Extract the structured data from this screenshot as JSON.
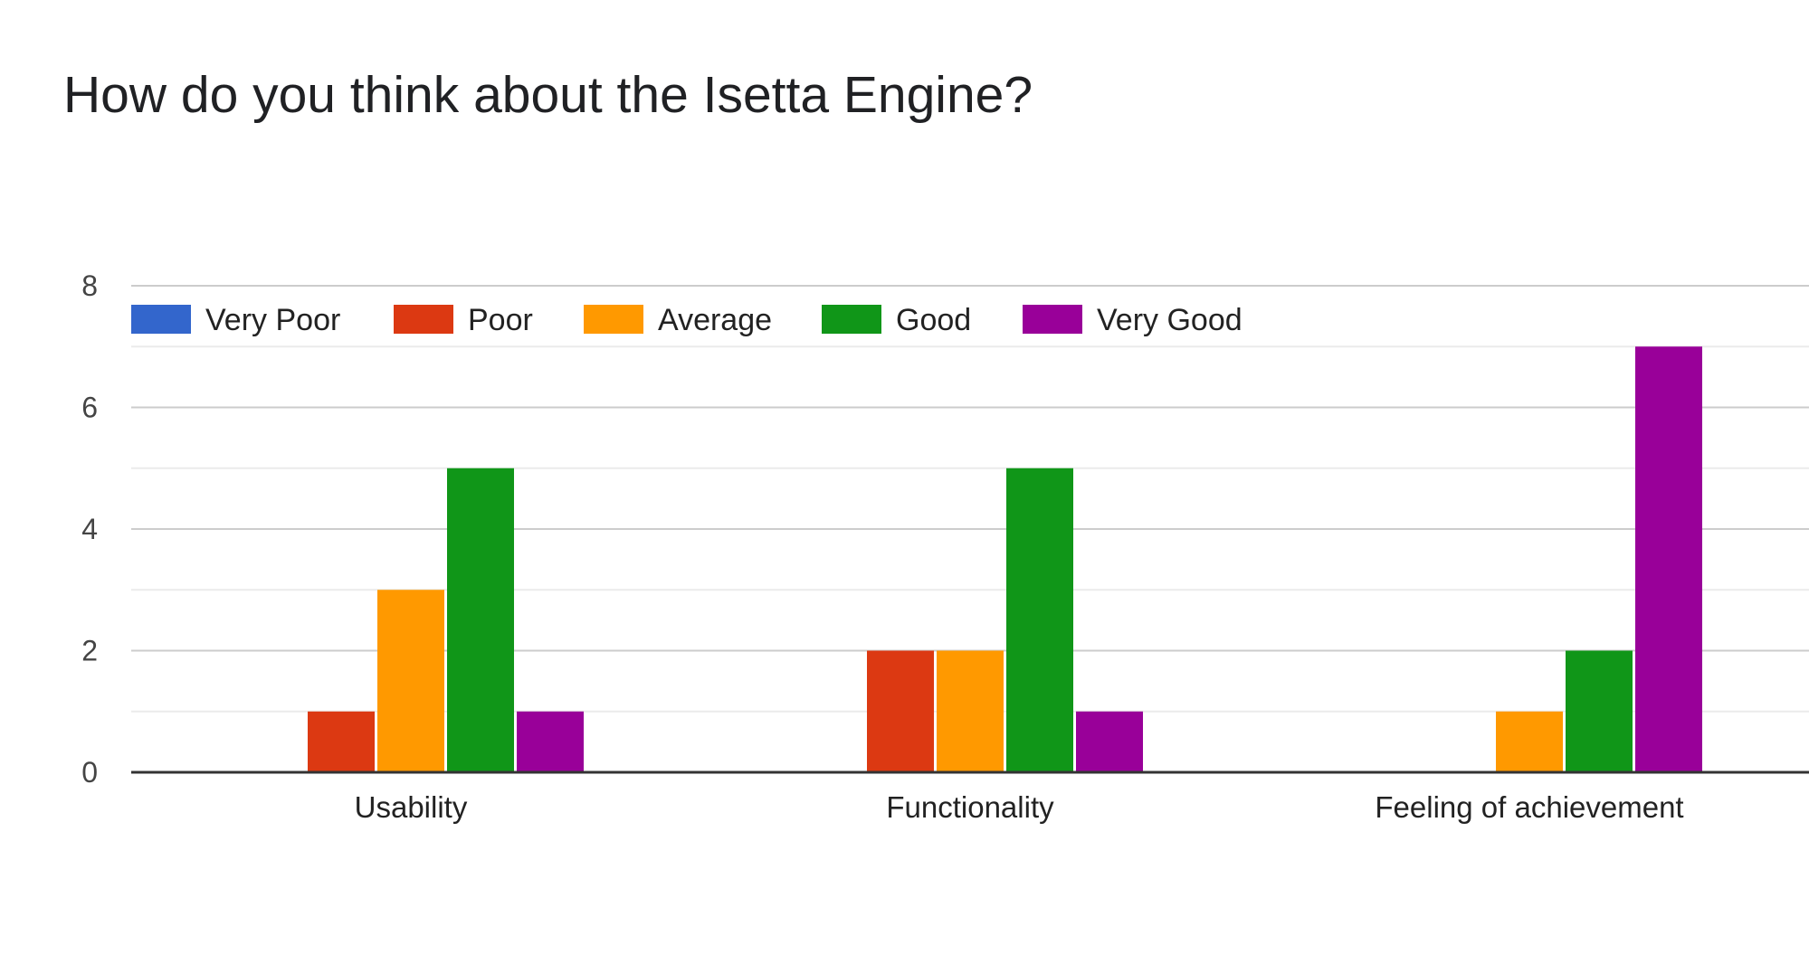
{
  "chart_data": {
    "type": "bar",
    "title": "How do you think about the Isetta Engine?",
    "categories": [
      "Usability",
      "Functionality",
      "Feeling of achievement"
    ],
    "series": [
      {
        "name": "Very Poor",
        "color": "#3366cc",
        "values": [
          0,
          0,
          0
        ]
      },
      {
        "name": "Poor",
        "color": "#dc3912",
        "values": [
          1,
          2,
          0
        ]
      },
      {
        "name": "Average",
        "color": "#ff9900",
        "values": [
          3,
          2,
          1
        ]
      },
      {
        "name": "Good",
        "color": "#109618",
        "values": [
          5,
          5,
          2
        ]
      },
      {
        "name": "Very Good",
        "color": "#990099",
        "values": [
          1,
          1,
          7
        ]
      }
    ],
    "ylim": [
      0,
      8
    ],
    "yticks": [
      0,
      2,
      4,
      6,
      8
    ],
    "grid": true,
    "legend_position": "top-left"
  }
}
